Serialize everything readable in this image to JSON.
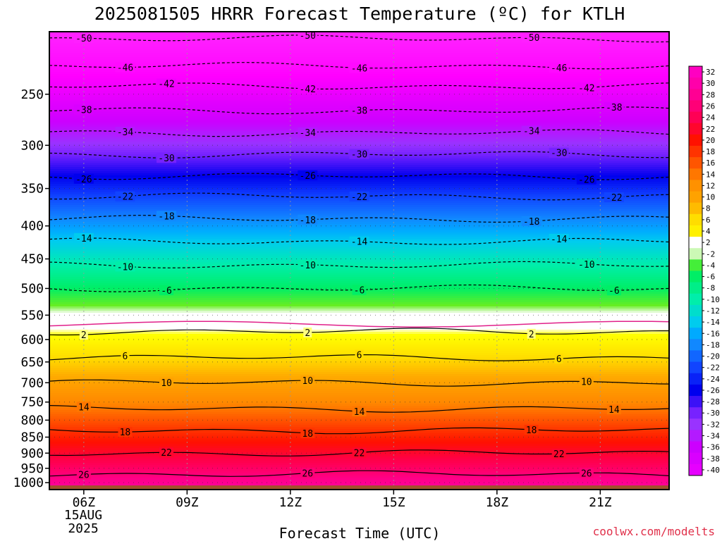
{
  "title": "2025081505 HRRR Forecast Temperature (ºC) for KTLH",
  "xlabel": "Forecast Time (UTC)",
  "credit": "coolwx.com/modelts",
  "date_sub": [
    "15AUG",
    "2025"
  ],
  "colorbar_labels": [
    "32",
    "30",
    "28",
    "26",
    "24",
    "22",
    "20",
    "18",
    "16",
    "14",
    "12",
    "10",
    "8",
    "6",
    "4",
    "2",
    "-2",
    "-4",
    "-6",
    "-8",
    "-10",
    "-12",
    "-14",
    "-16",
    "-18",
    "-20",
    "-22",
    "-24",
    "-26",
    "-28",
    "-30",
    "-32",
    "-34",
    "-36",
    "-38",
    "-40"
  ],
  "chart_data": {
    "type": "heatmap",
    "title": "2025081505 HRRR Forecast Temperature (ºC) for KTLH",
    "xlabel": "Forecast Time (UTC)",
    "ylabel": "",
    "x_ticks": [
      "06Z",
      "09Z",
      "12Z",
      "15Z",
      "18Z",
      "21Z"
    ],
    "x_tick_hours": [
      6,
      9,
      12,
      15,
      18,
      21
    ],
    "x_range_hours": [
      5,
      23
    ],
    "y_ticks": [
      250,
      300,
      350,
      400,
      450,
      500,
      550,
      600,
      650,
      700,
      750,
      800,
      850,
      900,
      950,
      1000
    ],
    "y_unit": "hPa",
    "y_range_hpa": [
      200,
      1025
    ],
    "y_scale": "log",
    "grid": true,
    "legend": "colorbar-right",
    "contours": [
      {
        "value": -50,
        "label": "-50",
        "pressure": 205
      },
      {
        "value": -46,
        "label": "-46",
        "pressure": 226
      },
      {
        "value": -42,
        "label": "-42",
        "pressure": 243
      },
      {
        "value": -38,
        "label": "-38",
        "pressure": 265
      },
      {
        "value": -34,
        "label": "-34",
        "pressure": 287
      },
      {
        "value": -30,
        "label": "-30",
        "pressure": 310
      },
      {
        "value": -26,
        "label": "-26",
        "pressure": 335
      },
      {
        "value": -22,
        "label": "-22",
        "pressure": 360
      },
      {
        "value": -18,
        "label": "-18",
        "pressure": 390
      },
      {
        "value": -14,
        "label": "-14",
        "pressure": 423
      },
      {
        "value": -10,
        "label": "-10",
        "pressure": 460
      },
      {
        "value": -6,
        "label": "-6",
        "pressure": 500
      },
      {
        "value": 2,
        "label": "2",
        "pressure": 583
      },
      {
        "value": 6,
        "label": "6",
        "pressure": 640
      },
      {
        "value": 10,
        "label": "10",
        "pressure": 700
      },
      {
        "value": 14,
        "label": "14",
        "pressure": 768
      },
      {
        "value": 18,
        "label": "18",
        "pressure": 830
      },
      {
        "value": 22,
        "label": "22",
        "pressure": 900
      },
      {
        "value": 26,
        "label": "26",
        "pressure": 970
      }
    ],
    "zero_line_pressure": 568,
    "surface_pressure": 1010
  }
}
